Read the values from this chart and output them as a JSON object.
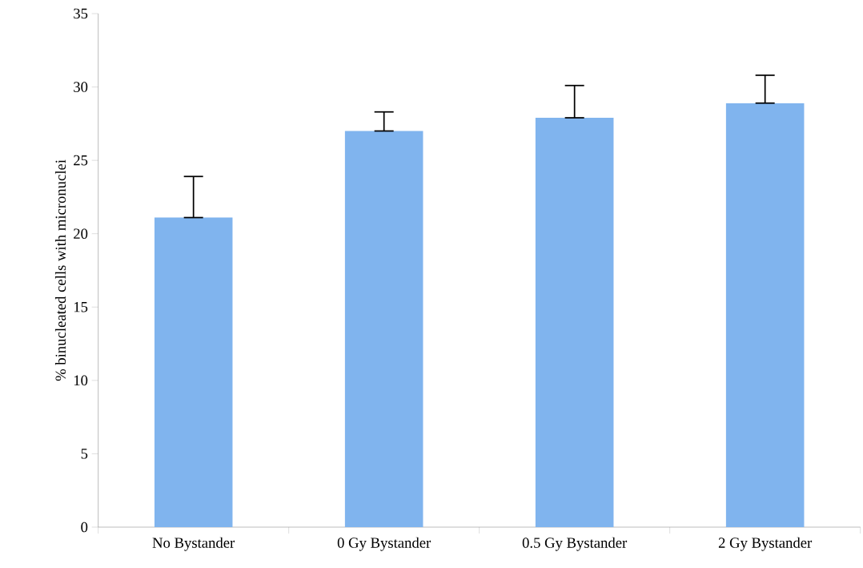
{
  "chart_data": {
    "type": "bar",
    "ylabel": "% binucleated cells with micronuclei",
    "categories": [
      "No Bystander",
      "0 Gy Bystander",
      "0.5 Gy Bystander",
      "2 Gy Bystander"
    ],
    "values": [
      21.1,
      27.0,
      27.9,
      28.9
    ],
    "errors": [
      [
        21.1,
        23.9
      ],
      [
        27.0,
        28.3
      ],
      [
        27.9,
        30.1
      ],
      [
        28.9,
        30.8
      ]
    ],
    "color": "#80b4ee",
    "ylim": [
      0,
      35
    ],
    "yticks": [
      0,
      5,
      10,
      15,
      20,
      25,
      30,
      35
    ],
    "grid": false
  }
}
